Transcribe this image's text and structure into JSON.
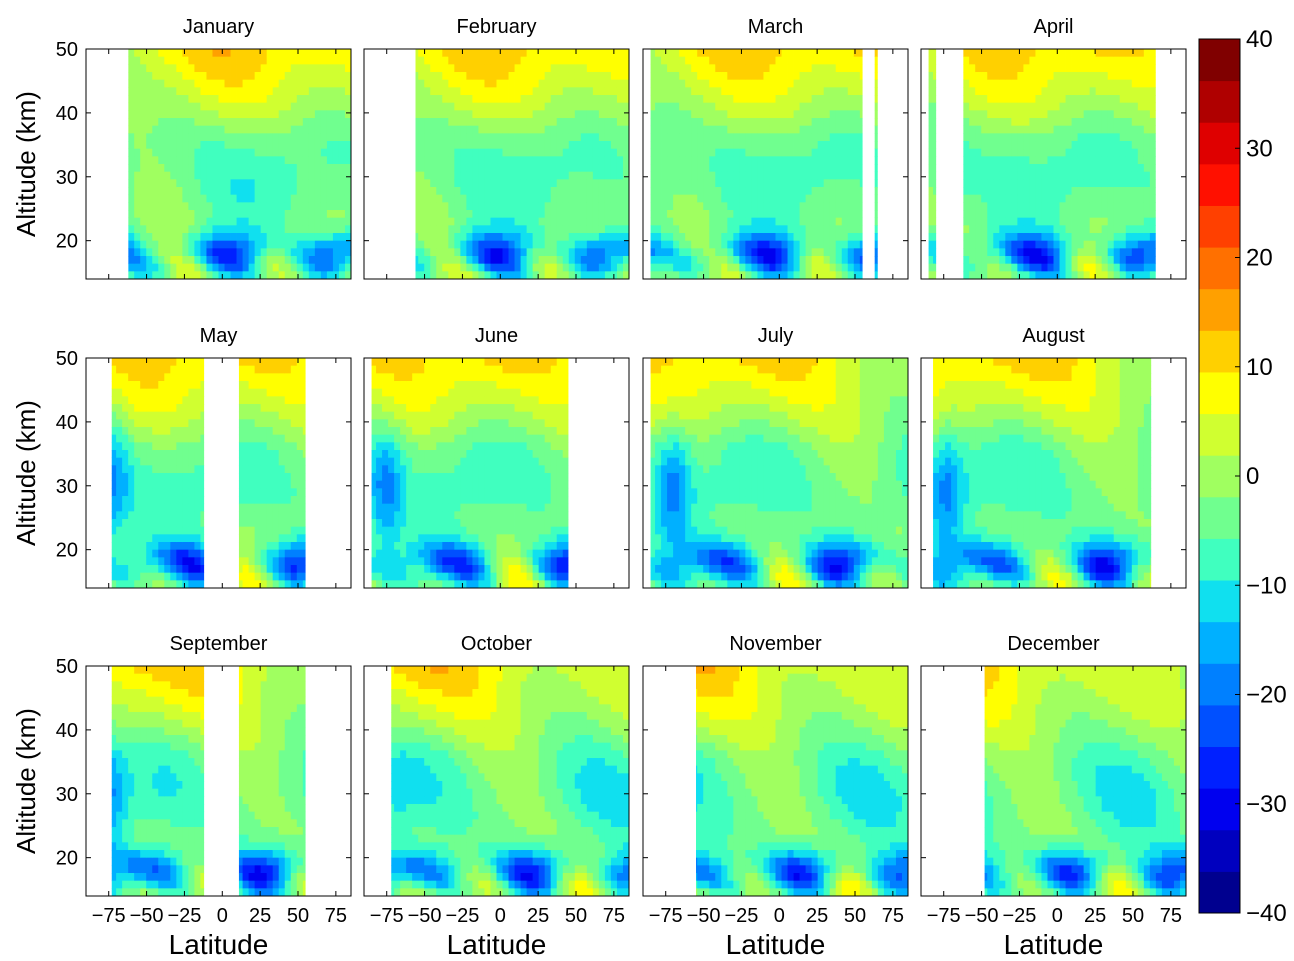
{
  "chart_data": {
    "type": "heatmap",
    "panels": [
      {
        "title": "January"
      },
      {
        "title": "February"
      },
      {
        "title": "March"
      },
      {
        "title": "April"
      },
      {
        "title": "May"
      },
      {
        "title": "June"
      },
      {
        "title": "July"
      },
      {
        "title": "August"
      },
      {
        "title": "September"
      },
      {
        "title": "October"
      },
      {
        "title": "November"
      },
      {
        "title": "December"
      }
    ],
    "xlabel": "Latitude",
    "ylabel": "Altitude (km)",
    "xlim": [
      -90,
      85
    ],
    "ylim": [
      14,
      50
    ],
    "xticks": [
      -75,
      -50,
      -25,
      0,
      25,
      50,
      75
    ],
    "xtick_labels": [
      "−75",
      "−50",
      "−25",
      "0",
      "25",
      "50",
      "75"
    ],
    "yticks": [
      20,
      30,
      40,
      50
    ],
    "ytick_labels": [
      "20",
      "30",
      "40",
      "50"
    ],
    "colorbar": {
      "min": -40,
      "max": 40,
      "step": 5,
      "ticks": [
        40,
        30,
        20,
        10,
        0,
        -10,
        -20,
        -30,
        -40
      ],
      "tick_labels": [
        "40",
        "30",
        "20",
        "10",
        "0",
        "−10",
        "−20",
        "−30",
        "−40"
      ],
      "colors": [
        "#00008f",
        "#0000bf",
        "#0000ef",
        "#0020ff",
        "#0050ff",
        "#0080ff",
        "#00b0ff",
        "#10e0ef",
        "#40ffbf",
        "#70ff8f",
        "#a0ff60",
        "#d0ff30",
        "#ffff00",
        "#ffd000",
        "#ffa000",
        "#ff7000",
        "#ff4000",
        "#ff1000",
        "#df0000",
        "#af0000",
        "#800000"
      ]
    },
    "grid": false
  }
}
